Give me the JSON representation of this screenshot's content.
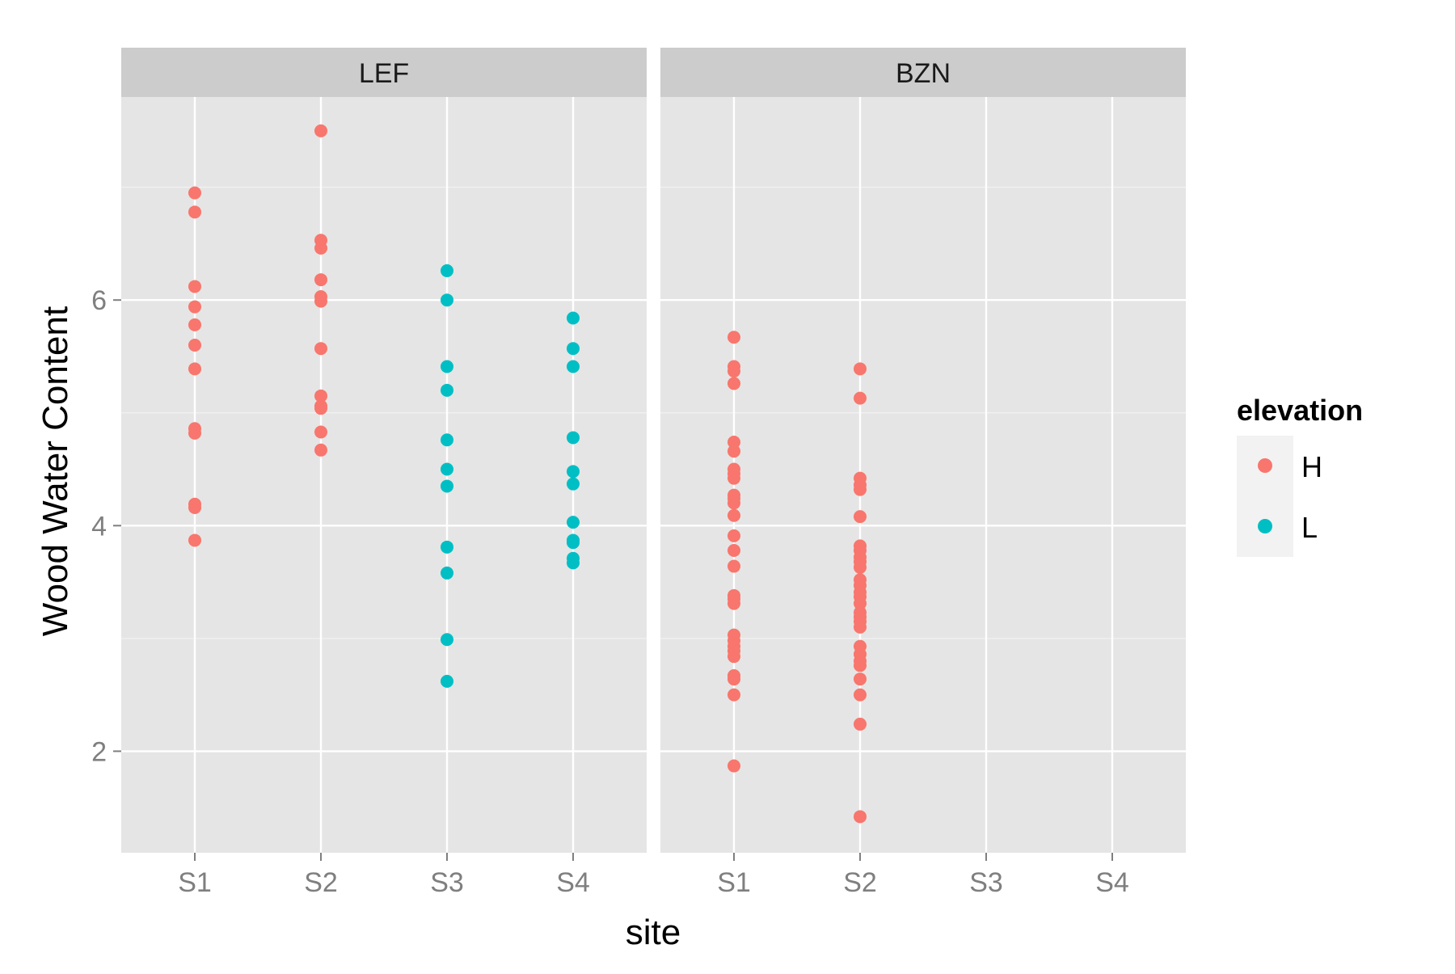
{
  "chart_data": {
    "type": "scatter",
    "facet_by": "site group",
    "panels": [
      "LEF",
      "BZN"
    ],
    "categories": [
      "S1",
      "S2",
      "S3",
      "S4"
    ],
    "xlabel": "site",
    "ylabel": "Wood Water Content",
    "ylim": [
      1.1,
      7.8
    ],
    "yticks": [
      2,
      4,
      6
    ],
    "grid": true,
    "legend": {
      "title": "elevation",
      "position": "right",
      "entries": [
        {
          "label": "H",
          "color": "#F8766D"
        },
        {
          "label": "L",
          "color": "#00BFC4"
        }
      ]
    },
    "series": [
      {
        "name": "H",
        "color": "#F8766D",
        "points": [
          {
            "panel": "LEF",
            "x": "S1",
            "y": [
              6.95,
              6.78,
              6.12,
              5.94,
              5.78,
              5.6,
              5.39,
              4.86,
              4.82,
              4.19,
              4.16,
              3.87
            ]
          },
          {
            "panel": "LEF",
            "x": "S2",
            "y": [
              7.5,
              6.53,
              6.46,
              6.18,
              6.03,
              5.99,
              5.57,
              5.15,
              5.06,
              5.04,
              4.83,
              4.67
            ]
          },
          {
            "panel": "BZN",
            "x": "S1",
            "y": [
              5.67,
              5.41,
              5.37,
              5.26,
              4.74,
              4.66,
              4.5,
              4.46,
              4.42,
              4.27,
              4.24,
              4.2,
              4.09,
              3.91,
              3.78,
              3.64,
              3.38,
              3.35,
              3.31,
              3.03,
              2.98,
              2.93,
              2.89,
              2.84,
              2.67,
              2.64,
              2.5,
              1.87
            ]
          },
          {
            "panel": "BZN",
            "x": "S2",
            "y": [
              5.39,
              5.13,
              4.42,
              4.36,
              4.32,
              4.08,
              3.82,
              3.78,
              3.72,
              3.68,
              3.63,
              3.52,
              3.47,
              3.41,
              3.37,
              3.31,
              3.23,
              3.19,
              3.15,
              3.1,
              2.93,
              2.86,
              2.8,
              2.76,
              2.64,
              2.5,
              2.24,
              1.42
            ]
          }
        ]
      },
      {
        "name": "L",
        "color": "#00BFC4",
        "points": [
          {
            "panel": "LEF",
            "x": "S3",
            "y": [
              6.26,
              6.0,
              5.41,
              5.2,
              4.76,
              4.5,
              4.35,
              3.81,
              3.58,
              2.99,
              2.62
            ]
          },
          {
            "panel": "LEF",
            "x": "S4",
            "y": [
              5.84,
              5.57,
              5.41,
              4.78,
              4.48,
              4.37,
              4.03,
              3.87,
              3.85,
              3.71,
              3.67
            ]
          }
        ]
      }
    ]
  }
}
